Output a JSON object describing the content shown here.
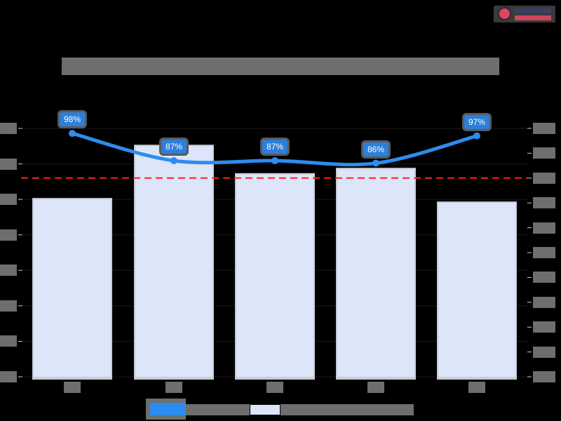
{
  "logo": {
    "icon": "brand-logo-icon"
  },
  "chart_data": {
    "type": "bar",
    "title": "[redacted]",
    "categories": [
      "[redacted]",
      "[redacted]",
      "[redacted]",
      "[redacted]",
      "[redacted]"
    ],
    "series": [
      {
        "name": "[redacted bars]",
        "type": "bar",
        "axis": "left",
        "color": "#dde5f8",
        "values": [
          5.0,
          6.5,
          5.7,
          5.85,
          4.9
        ]
      },
      {
        "name": "[redacted line]",
        "type": "line",
        "axis": "right",
        "color": "#2d8cf0",
        "values": [
          98,
          87,
          87,
          86,
          97
        ],
        "labels": [
          "98%",
          "87%",
          "87%",
          "86%",
          "97%"
        ]
      }
    ],
    "reference_line": {
      "value": 80,
      "axis": "right",
      "style": "dashed",
      "color": "#ff2020"
    },
    "left_axis": {
      "ylim": [
        0,
        7
      ],
      "ticks": [
        0,
        1,
        2,
        3,
        4,
        5,
        6,
        7
      ],
      "tick_labels_visible": false
    },
    "right_axis": {
      "ylim": [
        0,
        100
      ],
      "ticks": [
        0,
        10,
        20,
        30,
        40,
        50,
        60,
        70,
        80,
        90,
        100
      ],
      "unit": "%",
      "tick_labels_visible": false
    },
    "xlabel": "",
    "ylabel": "",
    "grid": true,
    "legend_position": "bottom"
  },
  "legend": {
    "items": [
      {
        "label": "[redacted]",
        "swatch": "line",
        "color": "#2d8cf0"
      },
      {
        "label": "[redacted]",
        "swatch": "bar",
        "color": "#dde5f8"
      }
    ]
  }
}
